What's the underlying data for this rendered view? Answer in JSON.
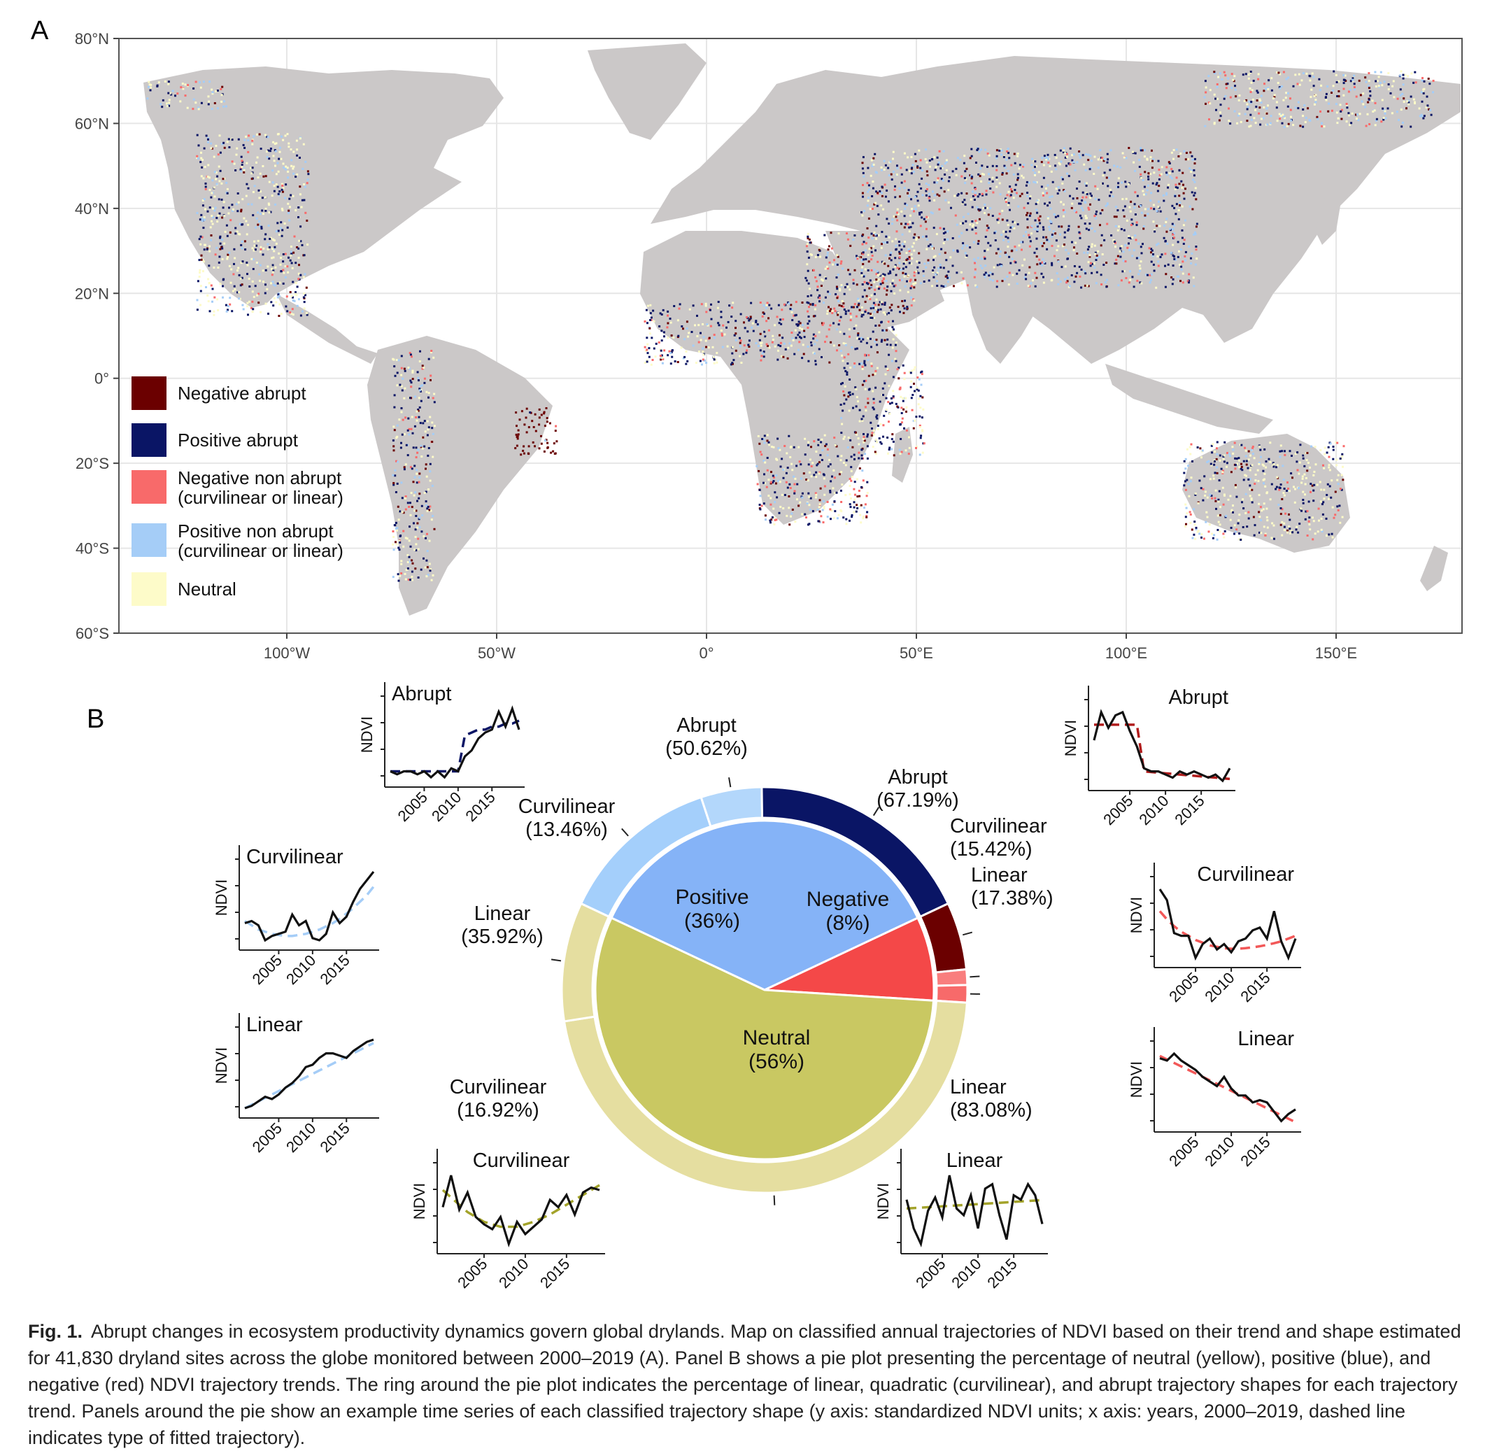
{
  "panel_a": {
    "label": "A",
    "lat_ticks": [
      "80°N",
      "60°N",
      "40°N",
      "20°N",
      "0°",
      "20°S",
      "40°S",
      "60°S"
    ],
    "lon_ticks": [
      "100°W",
      "50°W",
      "0°",
      "50°E",
      "100°E",
      "150°E"
    ],
    "legend": [
      {
        "label": "Negative abrupt",
        "color": "#6b0000"
      },
      {
        "label": "Positive abrupt",
        "color": "#0a1565"
      },
      {
        "label": "Negative non abrupt\n(curvilinear or linear)",
        "color": "#f86a6a"
      },
      {
        "label": "Positive non abrupt\n(curvilinear or linear)",
        "color": "#a5cdf7"
      },
      {
        "label": "Neutral",
        "color": "#fdfbc9"
      }
    ]
  },
  "panel_b": {
    "label": "B"
  },
  "chart_data": {
    "type": "pie",
    "pie": [
      {
        "label": "Positive",
        "pct": "(36%)",
        "value": 36,
        "color": "#85b3f7"
      },
      {
        "label": "Negative",
        "pct": "(8%)",
        "value": 8,
        "color": "#f44848"
      },
      {
        "label": "Neutral",
        "pct": "(56%)",
        "value": 56,
        "color": "#c9c862"
      }
    ],
    "ring": [
      {
        "trend": "Positive",
        "shape": "Abrupt",
        "pct_label": "(50.62%)",
        "value": 50.62,
        "color": "#0a1565"
      },
      {
        "trend": "Positive",
        "shape": "Curvilinear",
        "pct_label": "(13.46%)",
        "value": 13.46,
        "color": "#b3d7fb"
      },
      {
        "trend": "Positive",
        "shape": "Linear",
        "pct_label": "(35.92%)",
        "value": 35.92,
        "color": "#a4cffb"
      },
      {
        "trend": "Negative",
        "shape": "Abrupt",
        "pct_label": "(67.19%)",
        "value": 67.19,
        "color": "#6b0000"
      },
      {
        "trend": "Negative",
        "shape": "Curvilinear",
        "pct_label": "(15.42%)",
        "value": 15.42,
        "color": "#f97e7e"
      },
      {
        "trend": "Negative",
        "shape": "Linear",
        "pct_label": "(17.38%)",
        "value": 17.38,
        "color": "#f76a6a"
      },
      {
        "trend": "Neutral",
        "shape": "Linear",
        "pct_label": "(83.08%)",
        "value": 83.08,
        "color": "#e5dea0"
      },
      {
        "trend": "Neutral",
        "shape": "Curvilinear",
        "pct_label": "(16.92%)",
        "value": 16.92,
        "color": "#e5dea0"
      }
    ],
    "insets": {
      "y_label": "NDVI",
      "x_ticks": [
        "2005",
        "2010",
        "2015"
      ],
      "series": [
        {
          "id": "pos-abrupt",
          "title": "Abrupt",
          "values": [
            -1.0,
            -1.1,
            -1.0,
            -1.0,
            -1.1,
            -1.0,
            -1.2,
            -1.0,
            -1.2,
            -0.9,
            -1.0,
            -0.5,
            -0.3,
            0.1,
            0.3,
            0.4,
            1.0,
            0.5,
            1.1,
            0.4
          ],
          "fit": [
            -1.0,
            -1.0,
            -1.0,
            -1.0,
            -1.0,
            -1.0,
            -1.0,
            -1.0,
            -1.0,
            -1.0,
            -1.0,
            0.2,
            0.3,
            0.4,
            0.4,
            0.5,
            0.5,
            0.6,
            0.6,
            0.7
          ],
          "fit_color": "#0a1565"
        },
        {
          "id": "pos-curv",
          "title": "Curvilinear",
          "values": [
            -0.2,
            -0.1,
            -0.3,
            -1.0,
            -0.8,
            -0.7,
            -0.6,
            0.2,
            -0.3,
            -0.1,
            -0.9,
            -1.0,
            -0.7,
            0.3,
            -0.2,
            0.1,
            0.8,
            1.4,
            1.8,
            2.2
          ],
          "fit": [
            -0.1,
            -0.3,
            -0.5,
            -0.6,
            -0.7,
            -0.75,
            -0.8,
            -0.8,
            -0.75,
            -0.7,
            -0.6,
            -0.5,
            -0.35,
            -0.2,
            0.0,
            0.25,
            0.5,
            0.8,
            1.1,
            1.5
          ],
          "fit_color": "#a5cdf7"
        },
        {
          "id": "pos-lin",
          "title": "Linear",
          "values": [
            -1.6,
            -1.5,
            -1.3,
            -1.1,
            -1.2,
            -1.0,
            -0.7,
            -0.5,
            -0.2,
            0.2,
            0.3,
            0.6,
            0.8,
            0.8,
            0.7,
            0.6,
            0.9,
            1.1,
            1.3,
            1.4
          ],
          "fit": [
            -1.6,
            -1.45,
            -1.3,
            -1.15,
            -1.0,
            -0.85,
            -0.7,
            -0.55,
            -0.4,
            -0.25,
            -0.1,
            0.05,
            0.2,
            0.35,
            0.5,
            0.65,
            0.8,
            0.95,
            1.1,
            1.25
          ],
          "fit_color": "#a5cdf7"
        },
        {
          "id": "neu-curv",
          "title": "Curvilinear",
          "values": [
            -0.1,
            1.2,
            -0.2,
            0.5,
            -0.5,
            -0.8,
            -1.0,
            -0.5,
            -1.6,
            -0.7,
            -1.2,
            -0.9,
            -0.6,
            0.2,
            -0.1,
            0.4,
            -0.4,
            0.5,
            0.7,
            0.6
          ],
          "fit": [
            0.6,
            0.3,
            0.0,
            -0.3,
            -0.5,
            -0.7,
            -0.8,
            -0.9,
            -0.9,
            -0.9,
            -0.8,
            -0.7,
            -0.55,
            -0.4,
            -0.2,
            0.0,
            0.2,
            0.4,
            0.6,
            0.8
          ],
          "fit_color": "#a3a32a"
        },
        {
          "id": "neu-lin",
          "title": "Linear",
          "values": [
            0.3,
            -1.0,
            -1.7,
            -0.2,
            0.4,
            -0.5,
            1.4,
            -0.1,
            -0.4,
            0.5,
            -1.0,
            0.8,
            1.0,
            -0.4,
            -1.5,
            0.5,
            0.3,
            1.0,
            0.5,
            -0.8
          ],
          "fit": [
            -0.1,
            -0.08,
            -0.06,
            -0.04,
            -0.02,
            0.0,
            0.02,
            0.04,
            0.06,
            0.08,
            0.1,
            0.12,
            0.14,
            0.16,
            0.18,
            0.2,
            0.22,
            0.24,
            0.26,
            0.28
          ],
          "fit_color": "#a3a32a"
        },
        {
          "id": "neg-abrupt",
          "title": "Abrupt",
          "values": [
            0.3,
            1.2,
            0.7,
            1.1,
            1.2,
            0.6,
            0.1,
            -0.6,
            -0.7,
            -0.7,
            -0.8,
            -0.9,
            -0.7,
            -0.8,
            -0.7,
            -0.8,
            -0.9,
            -0.8,
            -1.0,
            -0.6
          ],
          "fit": [
            0.8,
            0.8,
            0.8,
            0.8,
            0.8,
            0.8,
            0.8,
            -0.7,
            -0.72,
            -0.74,
            -0.76,
            -0.78,
            -0.8,
            -0.82,
            -0.84,
            -0.86,
            -0.88,
            -0.9,
            -0.92,
            -0.94
          ],
          "fit_color": "#b11c1c"
        },
        {
          "id": "neg-curv",
          "title": "Curvilinear",
          "values": [
            2.0,
            1.6,
            0.4,
            0.3,
            0.3,
            -0.5,
            0.0,
            0.2,
            -0.2,
            0.0,
            -0.3,
            0.1,
            0.2,
            0.5,
            0.6,
            0.2,
            1.2,
            0.1,
            -0.5,
            0.2
          ],
          "fit": [
            1.2,
            0.9,
            0.65,
            0.45,
            0.3,
            0.15,
            0.05,
            -0.05,
            -0.1,
            -0.15,
            -0.17,
            -0.17,
            -0.15,
            -0.12,
            -0.08,
            -0.03,
            0.03,
            0.1,
            0.2,
            0.3
          ],
          "fit_color": "#f25858"
        },
        {
          "id": "neg-lin",
          "title": "Linear",
          "values": [
            1.3,
            1.2,
            1.5,
            1.2,
            1.0,
            0.8,
            0.5,
            0.3,
            0.1,
            0.5,
            0.0,
            -0.3,
            -0.3,
            -0.6,
            -0.5,
            -0.6,
            -1.0,
            -1.4,
            -1.1,
            -0.9
          ],
          "fit": [
            1.4,
            1.25,
            1.1,
            0.95,
            0.8,
            0.65,
            0.5,
            0.35,
            0.2,
            0.05,
            -0.1,
            -0.25,
            -0.4,
            -0.55,
            -0.7,
            -0.85,
            -1.0,
            -1.15,
            -1.3,
            -1.45
          ],
          "fit_color": "#f25858"
        }
      ]
    }
  },
  "caption": {
    "label": "Fig. 1.",
    "text": "Abrupt changes in ecosystem productivity dynamics govern global drylands. Map on classified annual trajectories of NDVI based on their trend and shape estimated for 41,830 dryland sites across the globe monitored between 2000–2019 (A). Panel B shows a pie plot presenting the percentage of neutral (yellow), positive (blue), and negative (red) NDVI trajectory trends. The ring around the pie plot indicates the percentage of linear, quadratic (curvilinear), and abrupt trajectory shapes for each trajectory trend. Panels around the pie show an example time series of each classified trajectory shape (y axis: standardized NDVI units; x axis: years, 2000–2019, dashed line indicates type of fitted trajectory)."
  }
}
